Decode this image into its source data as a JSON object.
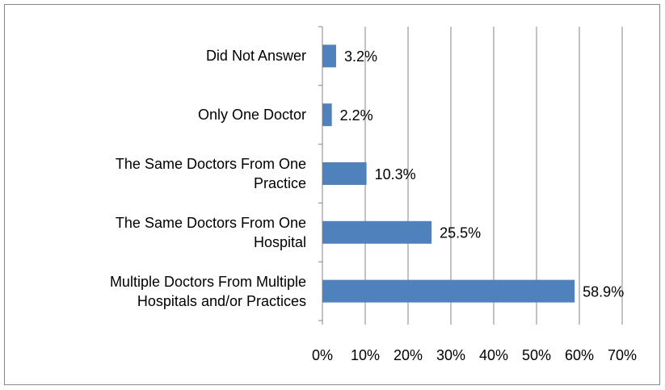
{
  "chart_data": {
    "type": "bar",
    "orientation": "horizontal",
    "categories": [
      "Did Not Answer",
      "Only One Doctor",
      "The Same Doctors From One Practice",
      "The Same Doctors From One Hospital",
      "Multiple Doctors From Multiple Hospitals and/or Practices"
    ],
    "values": [
      3.2,
      2.2,
      10.3,
      25.5,
      58.9
    ],
    "value_labels": [
      "3.2%",
      "2.2%",
      "10.3%",
      "25.5%",
      "58.9%"
    ],
    "color": "#4f81bd",
    "xlim": [
      0,
      70
    ],
    "xticks": [
      {
        "value": 0,
        "label": "0%"
      },
      {
        "value": 10,
        "label": "10%"
      },
      {
        "value": 20,
        "label": "20%"
      },
      {
        "value": 30,
        "label": "30%"
      },
      {
        "value": 40,
        "label": "40%"
      },
      {
        "value": 50,
        "label": "50%"
      },
      {
        "value": 60,
        "label": "60%"
      },
      {
        "value": 70,
        "label": "70%"
      }
    ],
    "grid": true
  }
}
